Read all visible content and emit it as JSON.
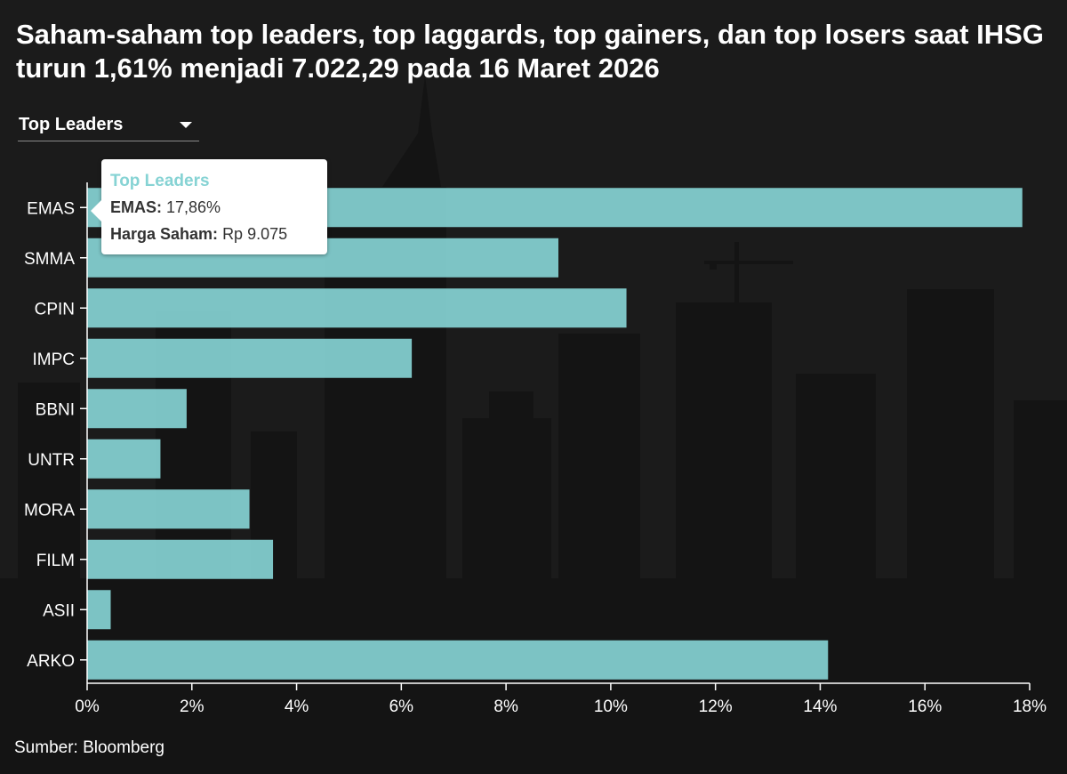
{
  "title": "Saham-saham top leaders, top laggards, top gainers, dan top losers saat IHSG turun 1,61% menjadi 7.022,29 pada 16 Maret 2026",
  "dropdown": {
    "selected": "Top Leaders"
  },
  "tooltip": {
    "title": "Top Leaders",
    "stock_label": "EMAS:",
    "stock_value": "17,86%",
    "price_label": "Harga Saham:",
    "price_value": "Rp 9.075"
  },
  "source": "Sumber: Bloomberg",
  "colors": {
    "bar": "#86d3d4",
    "background": "#1b1b1b"
  },
  "chart_data": {
    "type": "bar",
    "orientation": "horizontal",
    "series_name": "Top Leaders",
    "categories": [
      "EMAS",
      "SMMA",
      "CPIN",
      "IMPC",
      "BBNI",
      "UNTR",
      "MORA",
      "FILM",
      "ASII",
      "ARKO"
    ],
    "values": [
      17.86,
      9.0,
      10.3,
      6.2,
      1.9,
      1.4,
      3.1,
      3.55,
      0.45,
      14.15
    ],
    "xlim": [
      0,
      18
    ],
    "xticks": [
      "0%",
      "2%",
      "4%",
      "6%",
      "8%",
      "10%",
      "12%",
      "14%",
      "16%",
      "18%"
    ],
    "xlabel": "",
    "ylabel": "",
    "grid": false
  }
}
